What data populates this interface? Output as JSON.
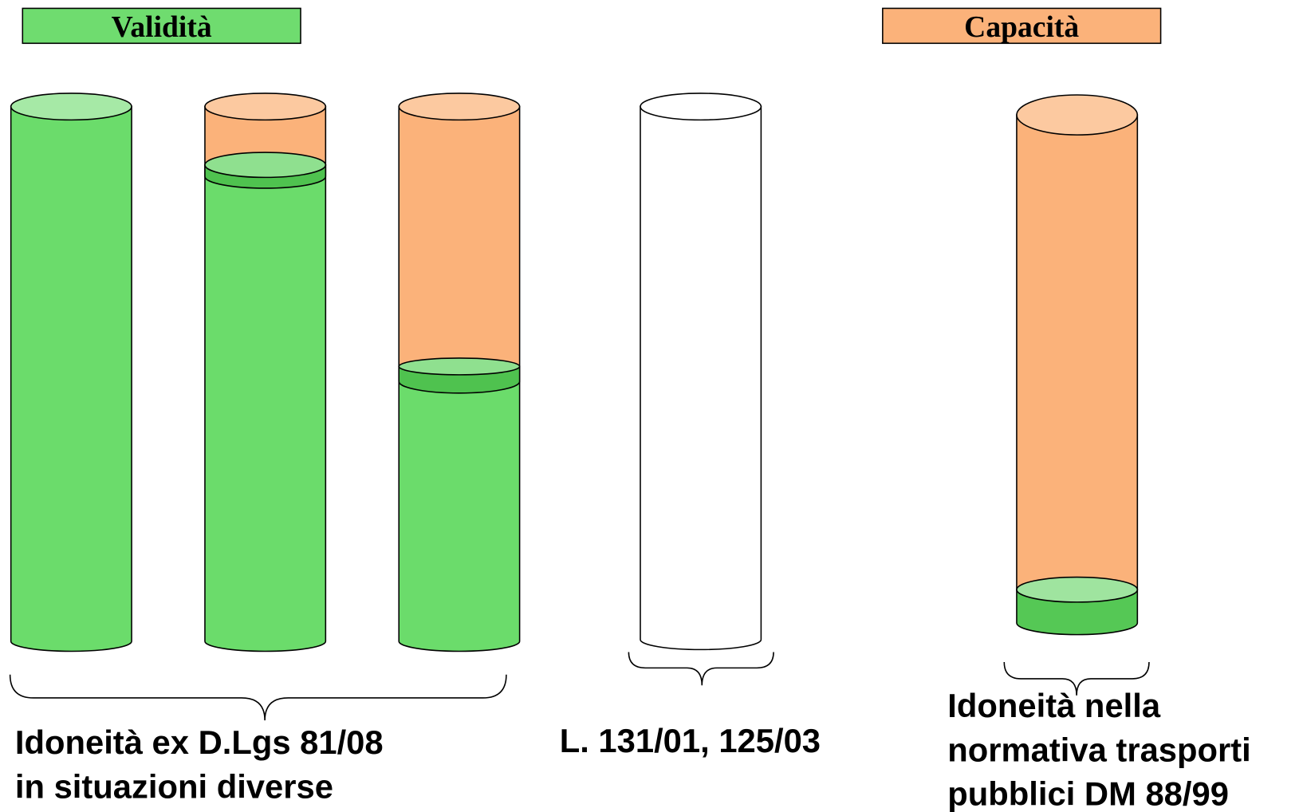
{
  "headers": {
    "validity": "Validità",
    "capacity": "Capacità"
  },
  "labels": [
    {
      "lines": [
        "Idoneità ex D.Lgs 81/08",
        "in situazioni diverse"
      ]
    },
    {
      "lines": [
        "L. 131/01, 125/03"
      ]
    },
    {
      "lines": [
        "Idoneità nella",
        "normativa trasporti",
        "pubblici DM 88/99"
      ]
    }
  ]
}
